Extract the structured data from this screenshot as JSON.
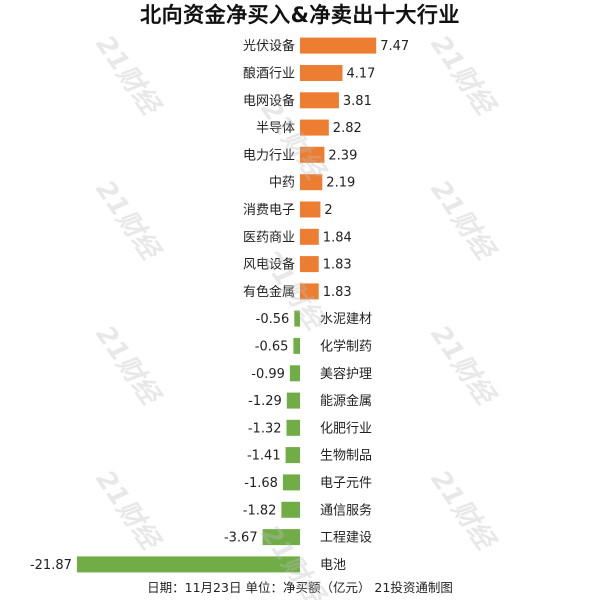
{
  "chart_data": {
    "type": "bar",
    "orientation": "horizontal",
    "title": "北向资金净买入&净卖出十大行业",
    "categories": [
      "光伏设备",
      "酿酒行业",
      "电网设备",
      "半导体",
      "电力行业",
      "中药",
      "消费电子",
      "医药商业",
      "风电设备",
      "有色金属",
      "水泥建材",
      "化学制药",
      "美容护理",
      "能源金属",
      "化肥行业",
      "生物制品",
      "电子元件",
      "通信服务",
      "工程建设",
      "电池"
    ],
    "values": [
      7.47,
      4.17,
      3.81,
      2.82,
      2.39,
      2.19,
      2,
      1.84,
      1.83,
      1.83,
      -0.56,
      -0.65,
      -0.99,
      -1.29,
      -1.32,
      -1.41,
      -1.68,
      -1.82,
      -3.67,
      -21.87
    ],
    "value_labels": [
      "7.47",
      "4.17",
      "3.81",
      "2.82",
      "2.39",
      "2.19",
      "2",
      "1.84",
      "1.83",
      "1.83",
      "-0.56",
      "-0.65",
      "-0.99",
      "-1.29",
      "-1.32",
      "-1.41",
      "-1.68",
      "-1.82",
      "-3.67",
      "-21.87"
    ],
    "colors": {
      "positive": "#ED7D31",
      "negative": "#70AD47"
    },
    "xlim": [
      -21.87,
      7.47
    ],
    "grid": false,
    "legend": "none"
  },
  "footer": "日期：11月23日 单位：净买额（亿元） 21投资通制图",
  "watermark": "21财经"
}
